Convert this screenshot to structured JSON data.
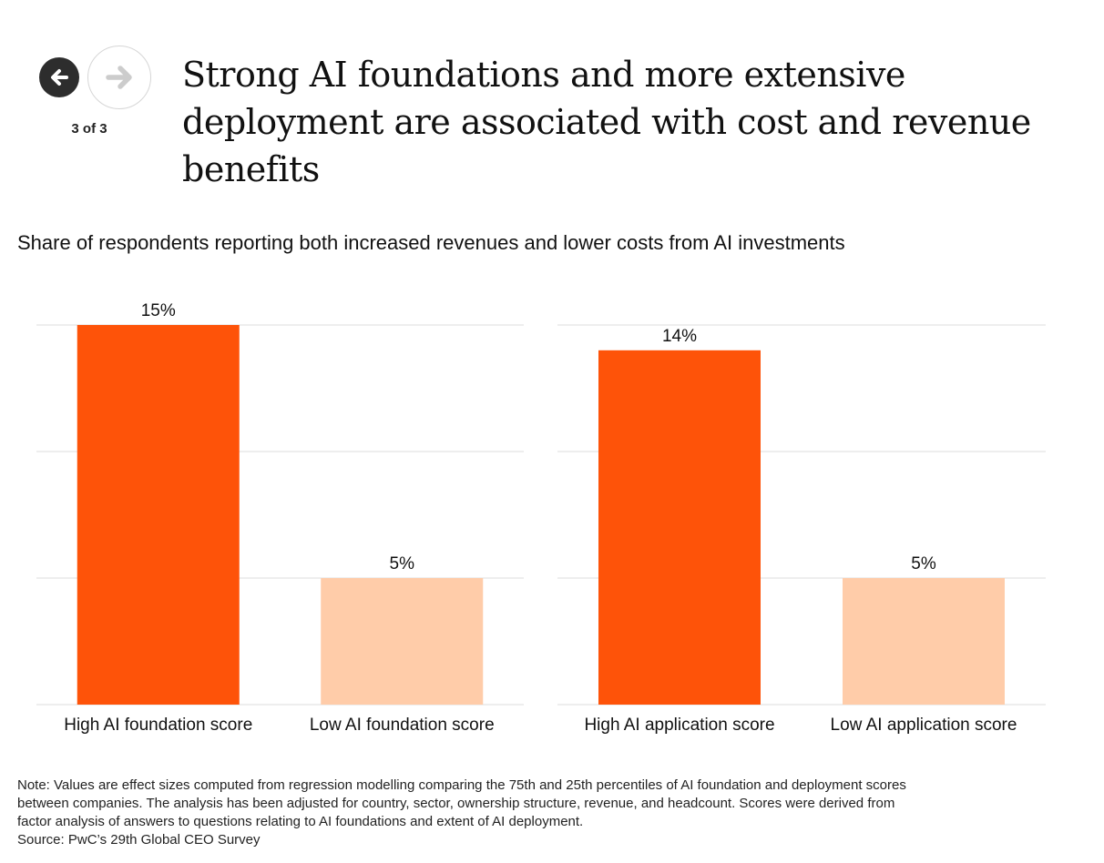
{
  "nav": {
    "prev_label": "Previous",
    "next_label": "Next",
    "counter": "3 of 3"
  },
  "title": "Strong AI foundations and more extensive deployment are associated with cost and revenue benefits",
  "subtitle": "Share of respondents reporting both increased revenues and lower costs from AI investments",
  "colors": {
    "high": "#fe5309",
    "low": "#ffcca9",
    "grid": "#e8e8e8",
    "text": "#111111"
  },
  "chart_data": [
    {
      "type": "bar",
      "title": "",
      "categories": [
        "High AI foundation score",
        "Low AI foundation score"
      ],
      "values": [
        15,
        5
      ],
      "value_labels": [
        "15%",
        "5%"
      ],
      "xlabel": "",
      "ylabel": "",
      "ylim": [
        0,
        15
      ],
      "grid": true,
      "gridlines": [
        0,
        5,
        10,
        15
      ]
    },
    {
      "type": "bar",
      "title": "",
      "categories": [
        "High AI application score",
        "Low AI application score"
      ],
      "values": [
        14,
        5
      ],
      "value_labels": [
        "14%",
        "5%"
      ],
      "xlabel": "",
      "ylabel": "",
      "ylim": [
        0,
        15
      ],
      "grid": true,
      "gridlines": [
        0,
        5,
        10,
        15
      ]
    }
  ],
  "note": {
    "lines": [
      "Note: Values are effect sizes computed from regression modelling comparing the 75th and 25th percentiles of AI foundation and deployment scores",
      "between companies. The analysis has been adjusted for country, sector, ownership structure, revenue, and headcount. Scores were derived from",
      "factor analysis of answers to questions relating to AI foundations and extent of AI deployment."
    ],
    "source": "Source: PwC’s 29th Global CEO Survey"
  }
}
